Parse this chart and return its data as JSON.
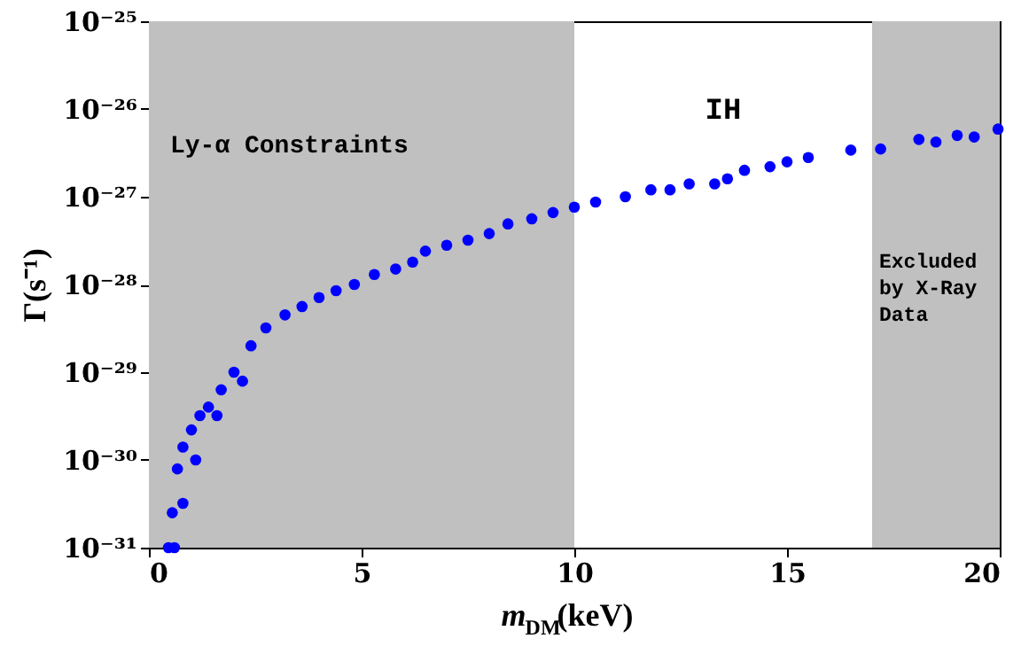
{
  "chart_data": {
    "type": "scatter",
    "x": [
      0.46,
      0.55,
      0.67,
      0.8,
      1.0,
      1.2,
      1.4,
      1.7,
      2.0,
      2.4,
      2.75,
      3.2,
      3.6,
      4.0,
      4.4,
      4.83,
      5.3,
      5.8,
      6.2,
      6.5,
      7.0,
      7.5,
      8.0,
      8.44,
      9.0,
      9.5,
      10.0,
      10.5,
      11.2,
      11.8,
      12.25,
      12.7,
      13.3,
      13.6,
      14.0,
      14.6,
      15.0,
      15.5,
      16.5,
      17.2,
      18.1,
      18.5,
      19.0,
      19.4,
      19.96,
      0.6,
      0.8,
      1.1,
      1.6,
      2.2
    ],
    "series": [
      {
        "color": "#0000ff",
        "values": [
          1e-31,
          2.5e-31,
          7.9e-31,
          1.4e-30,
          2.2e-30,
          3.2e-30,
          4e-30,
          6.3e-30,
          1e-29,
          2e-29,
          3.2e-29,
          4.5e-29,
          5.6e-29,
          7.1e-29,
          8.5e-29,
          1e-28,
          1.3e-28,
          1.5e-28,
          1.8e-28,
          2.4e-28,
          2.8e-28,
          3.2e-28,
          3.8e-28,
          4.9e-28,
          5.6e-28,
          6.6e-28,
          7.6e-28,
          8.7e-28,
          1e-27,
          1.2e-27,
          1.2e-27,
          1.4e-27,
          1.4e-27,
          1.6e-27,
          2e-27,
          2.2e-27,
          2.5e-27,
          2.8e-27,
          3.4e-27,
          3.5e-27,
          4.5e-27,
          4.2e-27,
          5e-27,
          4.8e-27,
          5.9e-27,
          1e-31,
          3.2e-31,
          1e-30,
          3.2e-30,
          7.9e-30
        ]
      }
    ],
    "xlabel": "m$_{DM}$(keV)",
    "ylabel": "Γ(s⁻¹)",
    "xlim": [
      0,
      20
    ],
    "xticks": [
      0,
      5,
      10,
      15,
      20
    ],
    "ylim": [
      1e-31,
      1e-25
    ],
    "log": true,
    "yticks": [
      {
        "value": 1e-31,
        "label": "10⁻³¹"
      },
      {
        "value": 1e-30,
        "label": "10⁻³⁰"
      },
      {
        "value": 1e-29,
        "label": "10⁻²⁹"
      },
      {
        "value": 1e-28,
        "label": "10⁻²⁸"
      },
      {
        "value": 1e-27,
        "label": "10⁻²⁷"
      },
      {
        "value": 1e-26,
        "label": "10⁻²⁶"
      },
      {
        "value": 1e-25,
        "label": "10⁻²⁵"
      }
    ],
    "bands": [
      {
        "axis": "x",
        "from": 0,
        "to": 10,
        "label": "Ly-α Constraints",
        "color": "#c0c0c0"
      },
      {
        "axis": "x",
        "from": 17,
        "to": 20,
        "label": "Excluded\nby X-Ray\nData",
        "color": "#c0c0c0"
      }
    ],
    "annotations": [
      "IH"
    ],
    "marker": "circle",
    "grid": false
  }
}
